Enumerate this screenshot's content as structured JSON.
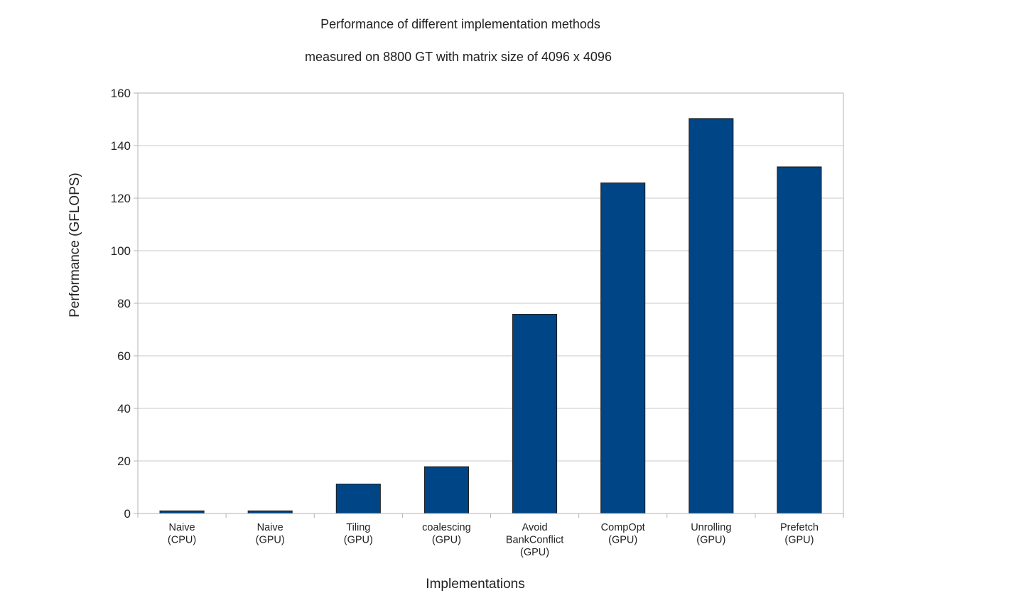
{
  "chart_data": {
    "type": "bar",
    "title": "Performance of different implementation methods",
    "subtitle": "measured on 8800 GT with matrix size of 4096 x 4096",
    "xlabel": "Implementations",
    "ylabel": "Performance (GFLOPS)",
    "ylim": [
      0,
      160
    ],
    "yticks": [
      0,
      20,
      40,
      60,
      80,
      100,
      120,
      140,
      160
    ],
    "grid": true,
    "categories": [
      [
        "Naive",
        "(CPU)"
      ],
      [
        "Naive",
        "(GPU)"
      ],
      [
        "Tiling",
        "(GPU)"
      ],
      [
        "coalescing",
        "(GPU)"
      ],
      [
        "Avoid",
        "BankConflict",
        "(GPU)"
      ],
      [
        "CompOpt",
        "(GPU)"
      ],
      [
        "Unrolling",
        "(GPU)"
      ],
      [
        "Prefetch",
        "(GPU)"
      ]
    ],
    "values": [
      1,
      1,
      11.2,
      17.8,
      75.8,
      125.8,
      150.3,
      131.9
    ],
    "bar_color": "#004586"
  }
}
